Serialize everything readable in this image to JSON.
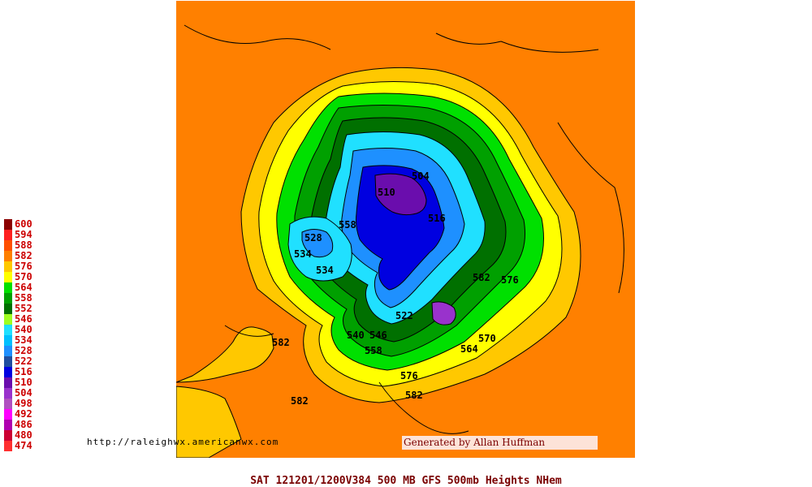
{
  "map": {
    "ocean_color": "#ff8000",
    "contour_labels": [
      {
        "id": "l582a",
        "text": "582"
      },
      {
        "id": "l582b",
        "text": "582"
      },
      {
        "id": "l582c",
        "text": "582"
      },
      {
        "id": "l582d",
        "text": "582"
      },
      {
        "id": "l576a",
        "text": "576"
      },
      {
        "id": "l576b",
        "text": "576"
      },
      {
        "id": "l570",
        "text": "570"
      },
      {
        "id": "l564",
        "text": "564"
      },
      {
        "id": "l558a",
        "text": "558"
      },
      {
        "id": "l558b",
        "text": "558"
      },
      {
        "id": "l546",
        "text": "546"
      },
      {
        "id": "l540",
        "text": "540"
      },
      {
        "id": "l534a",
        "text": "534"
      },
      {
        "id": "l534b",
        "text": "534"
      },
      {
        "id": "l528",
        "text": "528"
      },
      {
        "id": "l522",
        "text": "522"
      },
      {
        "id": "l516",
        "text": "516"
      },
      {
        "id": "l510",
        "text": "510"
      },
      {
        "id": "l504",
        "text": "504"
      }
    ]
  },
  "legend": [
    {
      "label": "600",
      "color": "#8b0000"
    },
    {
      "label": "594",
      "color": "#ff2020"
    },
    {
      "label": "588",
      "color": "#ff5000"
    },
    {
      "label": "582",
      "color": "#ff8000"
    },
    {
      "label": "576",
      "color": "#ffc800"
    },
    {
      "label": "570",
      "color": "#ffff00"
    },
    {
      "label": "564",
      "color": "#00e000"
    },
    {
      "label": "558",
      "color": "#00a000"
    },
    {
      "label": "552",
      "color": "#007000"
    },
    {
      "label": "546",
      "color": "#a0ff20"
    },
    {
      "label": "540",
      "color": "#20e0ff"
    },
    {
      "label": "534",
      "color": "#00c0ff"
    },
    {
      "label": "528",
      "color": "#1e90ff"
    },
    {
      "label": "522",
      "color": "#1f4e9f"
    },
    {
      "label": "516",
      "color": "#0000e0"
    },
    {
      "label": "510",
      "color": "#6a0dad"
    },
    {
      "label": "504",
      "color": "#9932cc"
    },
    {
      "label": "498",
      "color": "#b050c0"
    },
    {
      "label": "492",
      "color": "#ff00ff"
    },
    {
      "label": "486",
      "color": "#b000b0"
    },
    {
      "label": "480",
      "color": "#cc0033"
    },
    {
      "label": "474",
      "color": "#ff3030"
    }
  ],
  "credit": "Generated by Allan Huffman",
  "url": "http://raleighwx.americanwx.com",
  "bottom_title": "SAT 121201/1200V384  500 MB GFS 500mb Heights NHem"
}
